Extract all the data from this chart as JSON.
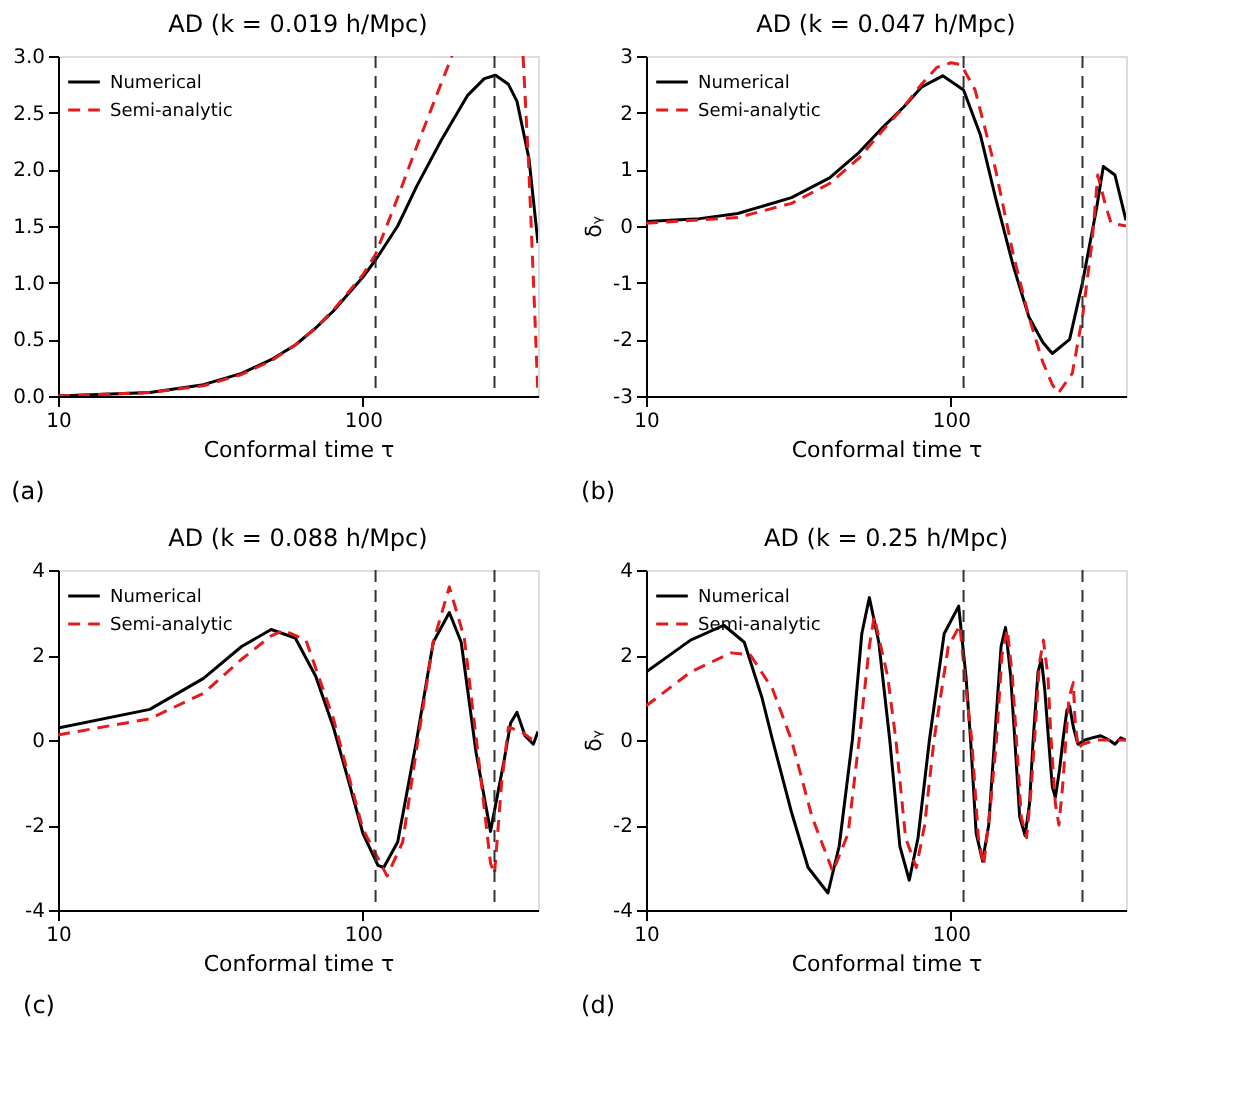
{
  "chart_data": [
    {
      "type": "line",
      "title": "AD (k = 0.019 h/Mpc)",
      "xlabel": "Conformal time τ",
      "log": "x",
      "xlim": [
        10,
        375
      ],
      "xticks": [
        10,
        100
      ],
      "ylim": [
        0,
        3
      ],
      "yticks": [
        {
          "value": 0,
          "label": "0.0"
        },
        {
          "value": 0.5,
          "label": "0.5"
        },
        {
          "value": 1,
          "label": "1.0"
        },
        {
          "value": 1.5,
          "label": "1.5"
        },
        {
          "value": 2,
          "label": "2.0"
        },
        {
          "value": 2.5,
          "label": "2.5"
        },
        {
          "value": 3,
          "label": "3.0"
        }
      ],
      "grid": false,
      "legend": "top left",
      "annotations": [
        "(a)"
      ],
      "ref_lines": [
        {
          "axis": "x",
          "value": 110,
          "color": "#333333",
          "line_style": "dashed"
        },
        {
          "axis": "x",
          "value": 270,
          "color": "#333333",
          "line_style": "dashed"
        }
      ],
      "series": [
        {
          "name": "Numerical",
          "color": "#000000",
          "line_style": "solid",
          "x": [
            10,
            20,
            30,
            40,
            50,
            60,
            70,
            80,
            100,
            110,
            130,
            150,
            180,
            220,
            250,
            272,
            300,
            320,
            350,
            375
          ],
          "values": [
            0.0,
            0.03,
            0.1,
            0.2,
            0.32,
            0.45,
            0.6,
            0.75,
            1.05,
            1.2,
            1.5,
            1.85,
            2.25,
            2.65,
            2.8,
            2.83,
            2.75,
            2.6,
            2.1,
            1.35
          ]
        },
        {
          "name": "Semi-analytic",
          "color": "#e41a1c",
          "line_style": "dashed",
          "x": [
            10,
            20,
            30,
            40,
            50,
            60,
            70,
            80,
            100,
            110,
            130,
            150,
            180,
            196,
            250,
            335,
            350,
            365,
            375
          ],
          "values": [
            0.0,
            0.03,
            0.09,
            0.19,
            0.31,
            0.45,
            0.6,
            0.76,
            1.07,
            1.25,
            1.75,
            2.2,
            2.75,
            3.0,
            null,
            3.0,
            2.0,
            0.8,
            0.0
          ]
        }
      ]
    },
    {
      "type": "line",
      "title": "AD (k = 0.047 h/Mpc)",
      "xlabel": "Conformal time τ",
      "ylabel": "δᵧ",
      "log": "x",
      "xlim": [
        10,
        375
      ],
      "xticks": [
        10,
        100
      ],
      "ylim": [
        -3,
        3
      ],
      "yticks": [
        -3,
        -2,
        -1,
        0,
        1,
        2,
        3
      ],
      "grid": false,
      "legend": "top left",
      "annotations": [
        "(b)"
      ],
      "ref_lines": [
        {
          "axis": "x",
          "value": 110,
          "color": "#333333",
          "line_style": "dashed"
        },
        {
          "axis": "x",
          "value": 270,
          "color": "#333333",
          "line_style": "dashed"
        }
      ],
      "series": [
        {
          "name": "Numerical",
          "color": "#000000",
          "line_style": "solid",
          "x": [
            10,
            15,
            20,
            30,
            40,
            50,
            60,
            70,
            80,
            94,
            110,
            125,
            140,
            160,
            180,
            200,
            215,
            245,
            270,
            300,
            316,
            345,
            375
          ],
          "values": [
            0.08,
            0.13,
            0.22,
            0.5,
            0.85,
            1.3,
            1.75,
            2.1,
            2.45,
            2.65,
            2.4,
            1.6,
            0.5,
            -0.7,
            -1.6,
            -2.05,
            -2.25,
            -2.0,
            -1.0,
            0.3,
            1.05,
            0.9,
            0.1
          ]
        },
        {
          "name": "Semi-analytic",
          "color": "#e41a1c",
          "line_style": "dashed",
          "x": [
            10,
            20,
            30,
            40,
            50,
            60,
            70,
            80,
            90,
            100,
            108,
            120,
            140,
            160,
            180,
            200,
            215,
            225,
            250,
            270,
            290,
            303,
            320,
            335,
            375
          ],
          "values": [
            0.05,
            0.15,
            0.4,
            0.75,
            1.2,
            1.7,
            2.1,
            2.5,
            2.8,
            2.88,
            2.85,
            2.4,
            1.0,
            -0.5,
            -1.6,
            -2.4,
            -2.8,
            -2.95,
            -2.6,
            -1.6,
            -0.3,
            0.9,
            0.4,
            0.05,
            0.0
          ]
        }
      ]
    },
    {
      "type": "line",
      "title": "AD (k = 0.088 h/Mpc)",
      "xlabel": "Conformal time τ",
      "log": "x",
      "xlim": [
        10,
        375
      ],
      "xticks": [
        10,
        100
      ],
      "ylim": [
        -4,
        4
      ],
      "yticks": [
        -4,
        -2,
        0,
        2,
        4
      ],
      "grid": false,
      "legend": "top left",
      "annotations": [
        "(c)"
      ],
      "ref_lines": [
        {
          "axis": "x",
          "value": 110,
          "color": "#333333",
          "line_style": "dashed"
        },
        {
          "axis": "x",
          "value": 270,
          "color": "#333333",
          "line_style": "dashed"
        }
      ],
      "series": [
        {
          "name": "Numerical",
          "color": "#000000",
          "line_style": "solid",
          "x": [
            10,
            20,
            30,
            40,
            50,
            60,
            70,
            80,
            90,
            100,
            112,
            117,
            130,
            150,
            170,
            192,
            210,
            235,
            262,
            290,
            305,
            320,
            340,
            362,
            375
          ],
          "values": [
            0.28,
            0.72,
            1.45,
            2.2,
            2.6,
            2.4,
            1.5,
            0.3,
            -1.0,
            -2.2,
            -2.95,
            -3.0,
            -2.4,
            0.0,
            2.3,
            3.0,
            2.3,
            -0.3,
            -2.15,
            -0.5,
            0.4,
            0.65,
            0.1,
            -0.1,
            0.2
          ]
        },
        {
          "name": "Semi-analytic",
          "color": "#e41a1c",
          "line_style": "dashed",
          "x": [
            10,
            20,
            30,
            40,
            50,
            55,
            65,
            80,
            100,
            120,
            135,
            150,
            170,
            192,
            215,
            240,
            262,
            270,
            285,
            300,
            330,
            360,
            375
          ],
          "values": [
            0.12,
            0.5,
            1.1,
            1.9,
            2.45,
            2.58,
            2.35,
            0.5,
            -2.1,
            -3.2,
            -2.4,
            -0.2,
            2.3,
            3.6,
            2.4,
            -0.5,
            -2.9,
            -3.15,
            -1.0,
            0.3,
            0.2,
            0.0,
            0.0
          ]
        }
      ]
    },
    {
      "type": "line",
      "title": "AD (k = 0.25 h/Mpc)",
      "xlabel": "Conformal time τ",
      "ylabel": "δᵧ",
      "log": "x",
      "xlim": [
        10,
        375
      ],
      "xticks": [
        10,
        100
      ],
      "ylim": [
        -4,
        4
      ],
      "yticks": [
        -4,
        -2,
        0,
        2,
        4
      ],
      "grid": false,
      "legend": "top left",
      "annotations": [
        "(d)"
      ],
      "ref_lines": [
        {
          "axis": "x",
          "value": 110,
          "color": "#333333",
          "line_style": "dashed"
        },
        {
          "axis": "x",
          "value": 270,
          "color": "#333333",
          "line_style": "dashed"
        }
      ],
      "series": [
        {
          "name": "Numerical",
          "color": "#000000",
          "line_style": "solid",
          "x": [
            10,
            14,
            18,
            21,
            24,
            26,
            30,
            34,
            39.5,
            43,
            47.5,
            51,
            54,
            58,
            63,
            68,
            73,
            78,
            85,
            95,
            106,
            112,
            116,
            121,
            127,
            133,
            139,
            146,
            151,
            157,
            162,
            168,
            175,
            181,
            186,
            193,
            198,
            203,
            209,
            215,
            220,
            227,
            233,
            240,
            245,
            252,
            261,
            275,
            290,
            310,
            330,
            345,
            360,
            375
          ],
          "values": [
            1.6,
            2.35,
            2.7,
            2.3,
            1.0,
            0.0,
            -1.7,
            -3.0,
            -3.6,
            -2.5,
            0.0,
            2.5,
            3.35,
            2.3,
            0.0,
            -2.5,
            -3.3,
            -2.3,
            0.0,
            2.5,
            3.15,
            1.5,
            0.0,
            -2.2,
            -2.85,
            -2.0,
            0.0,
            2.2,
            2.65,
            1.5,
            0.0,
            -1.8,
            -2.25,
            -1.5,
            0.0,
            1.6,
            1.9,
            1.2,
            0.0,
            -1.1,
            -1.35,
            -0.7,
            0.0,
            0.7,
            0.8,
            0.3,
            -0.1,
            0.0,
            0.05,
            0.1,
            0.0,
            -0.1,
            0.05,
            0.0
          ]
        },
        {
          "name": "Semi-analytic",
          "color": "#e41a1c",
          "line_style": "dashed",
          "x": [
            10,
            14,
            19,
            22,
            26,
            30,
            35,
            41,
            46,
            50,
            54,
            56,
            62,
            66,
            71,
            77,
            82,
            88,
            98,
            107,
            112,
            117,
            123,
            128,
            135,
            141,
            147,
            153,
            159,
            164,
            170,
            177,
            183,
            188,
            195,
            201,
            208,
            213,
            220,
            226,
            233,
            238,
            244,
            252,
            255,
            261,
            270,
            300,
            375
          ],
          "values": [
            0.8,
            1.6,
            2.05,
            2.0,
            1.2,
            0.0,
            -1.8,
            -3.1,
            -2.2,
            0.0,
            2.2,
            2.9,
            1.5,
            0.0,
            -2.3,
            -3.0,
            -2.0,
            0.0,
            2.2,
            2.7,
            1.2,
            0.0,
            -2.3,
            -2.95,
            -1.5,
            0.0,
            2.0,
            2.6,
            1.5,
            0.0,
            -1.8,
            -2.3,
            -1.2,
            0.0,
            1.8,
            2.35,
            1.5,
            0.0,
            -1.5,
            -2.0,
            -1.0,
            0.0,
            1.0,
            1.35,
            0.5,
            -0.2,
            -0.1,
            0.0,
            0.0
          ]
        }
      ]
    }
  ]
}
